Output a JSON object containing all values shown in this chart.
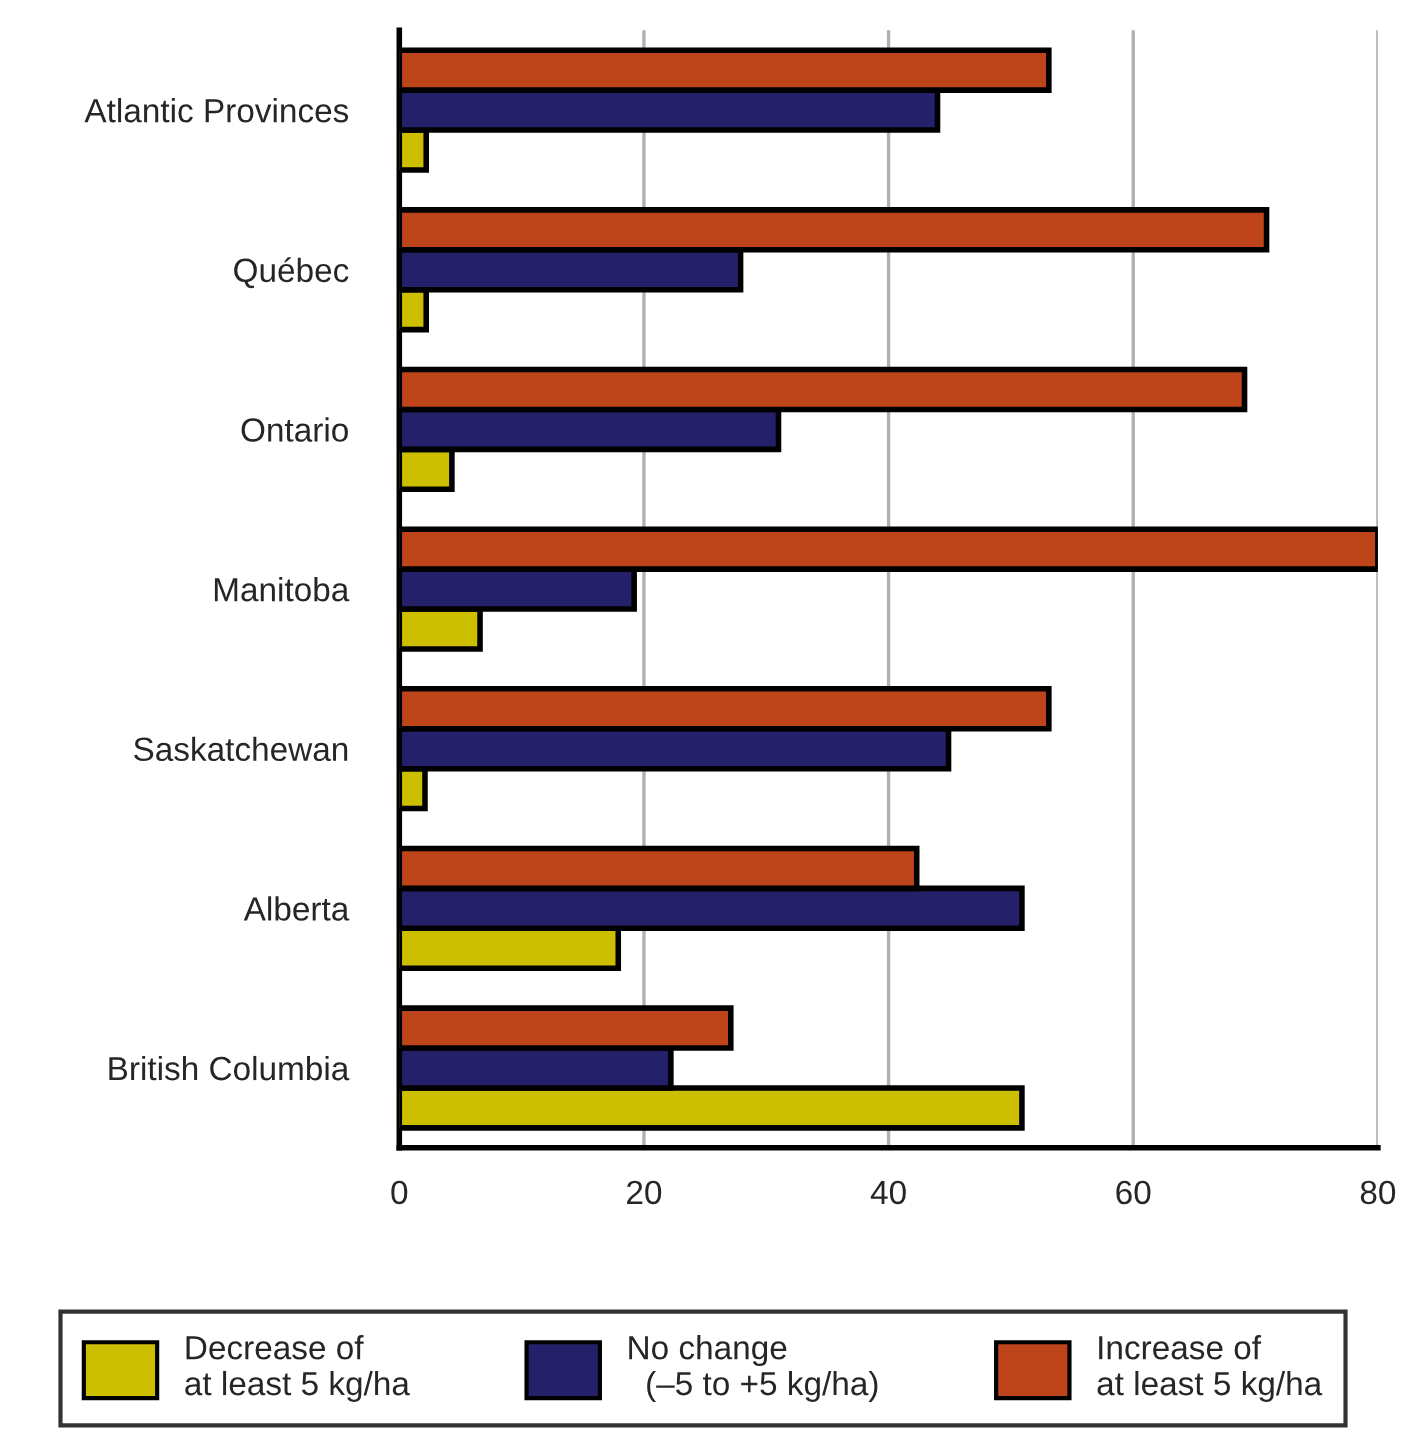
{
  "chart_data": {
    "type": "bar",
    "orientation": "horizontal",
    "categories": [
      "Atlantic Provinces",
      "Québec",
      "Ontario",
      "Manitoba",
      "Saskatchewan",
      "Alberta",
      "British Columbia"
    ],
    "series": [
      {
        "name": "Decrease of\nat least 5 kg/ha",
        "color": "#ccbf00",
        "values": [
          2.2,
          2.2,
          4.3,
          6.6,
          2.1,
          17.9,
          50.9
        ]
      },
      {
        "name": "No change\n  (–5 to +5 kg/ha)",
        "color": "#24206a",
        "values": [
          44.0,
          27.9,
          31.0,
          19.2,
          44.9,
          50.9,
          22.2
        ]
      },
      {
        "name": "Increase of\nat least 5 kg/ha",
        "color": "#bd4519",
        "values": [
          53.1,
          70.9,
          69.1,
          80.0,
          53.1,
          42.3,
          27.1
        ]
      }
    ],
    "xlim": [
      0,
      80
    ],
    "xticks": [
      0,
      20,
      40,
      60,
      80
    ],
    "grid": "x",
    "legend": "bottom"
  }
}
